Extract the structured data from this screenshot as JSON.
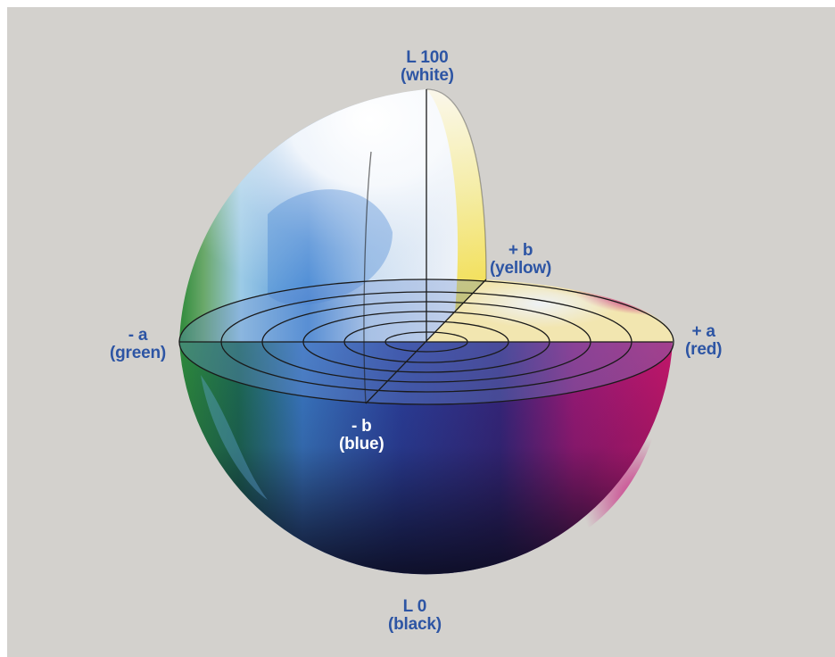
{
  "labels": {
    "l100": {
      "line1": "L 100",
      "line2": "(white)"
    },
    "plus_b": {
      "line1": "+ b",
      "line2": "(yellow)"
    },
    "minus_a": {
      "line1": "- a",
      "line2": "(green)"
    },
    "plus_a": {
      "line1": "+ a",
      "line2": "(red)"
    },
    "minus_b": {
      "line1": "- b",
      "line2": "(blue)"
    },
    "l0": {
      "line1": "L 0",
      "line2": "(black)"
    }
  },
  "colors": {
    "background": "#d3d1cd",
    "label_text": "#2d55a4",
    "axis_line": "#1a1a1a",
    "white_pole": "#f7f8fb",
    "black_pole": "#141425",
    "green": "#2f8a3c",
    "red": "#c8142c",
    "magenta": "#b5166f",
    "yellow": "#f0d92f",
    "blue": "#2f45a0",
    "light_blue": "#7fb2e6"
  }
}
